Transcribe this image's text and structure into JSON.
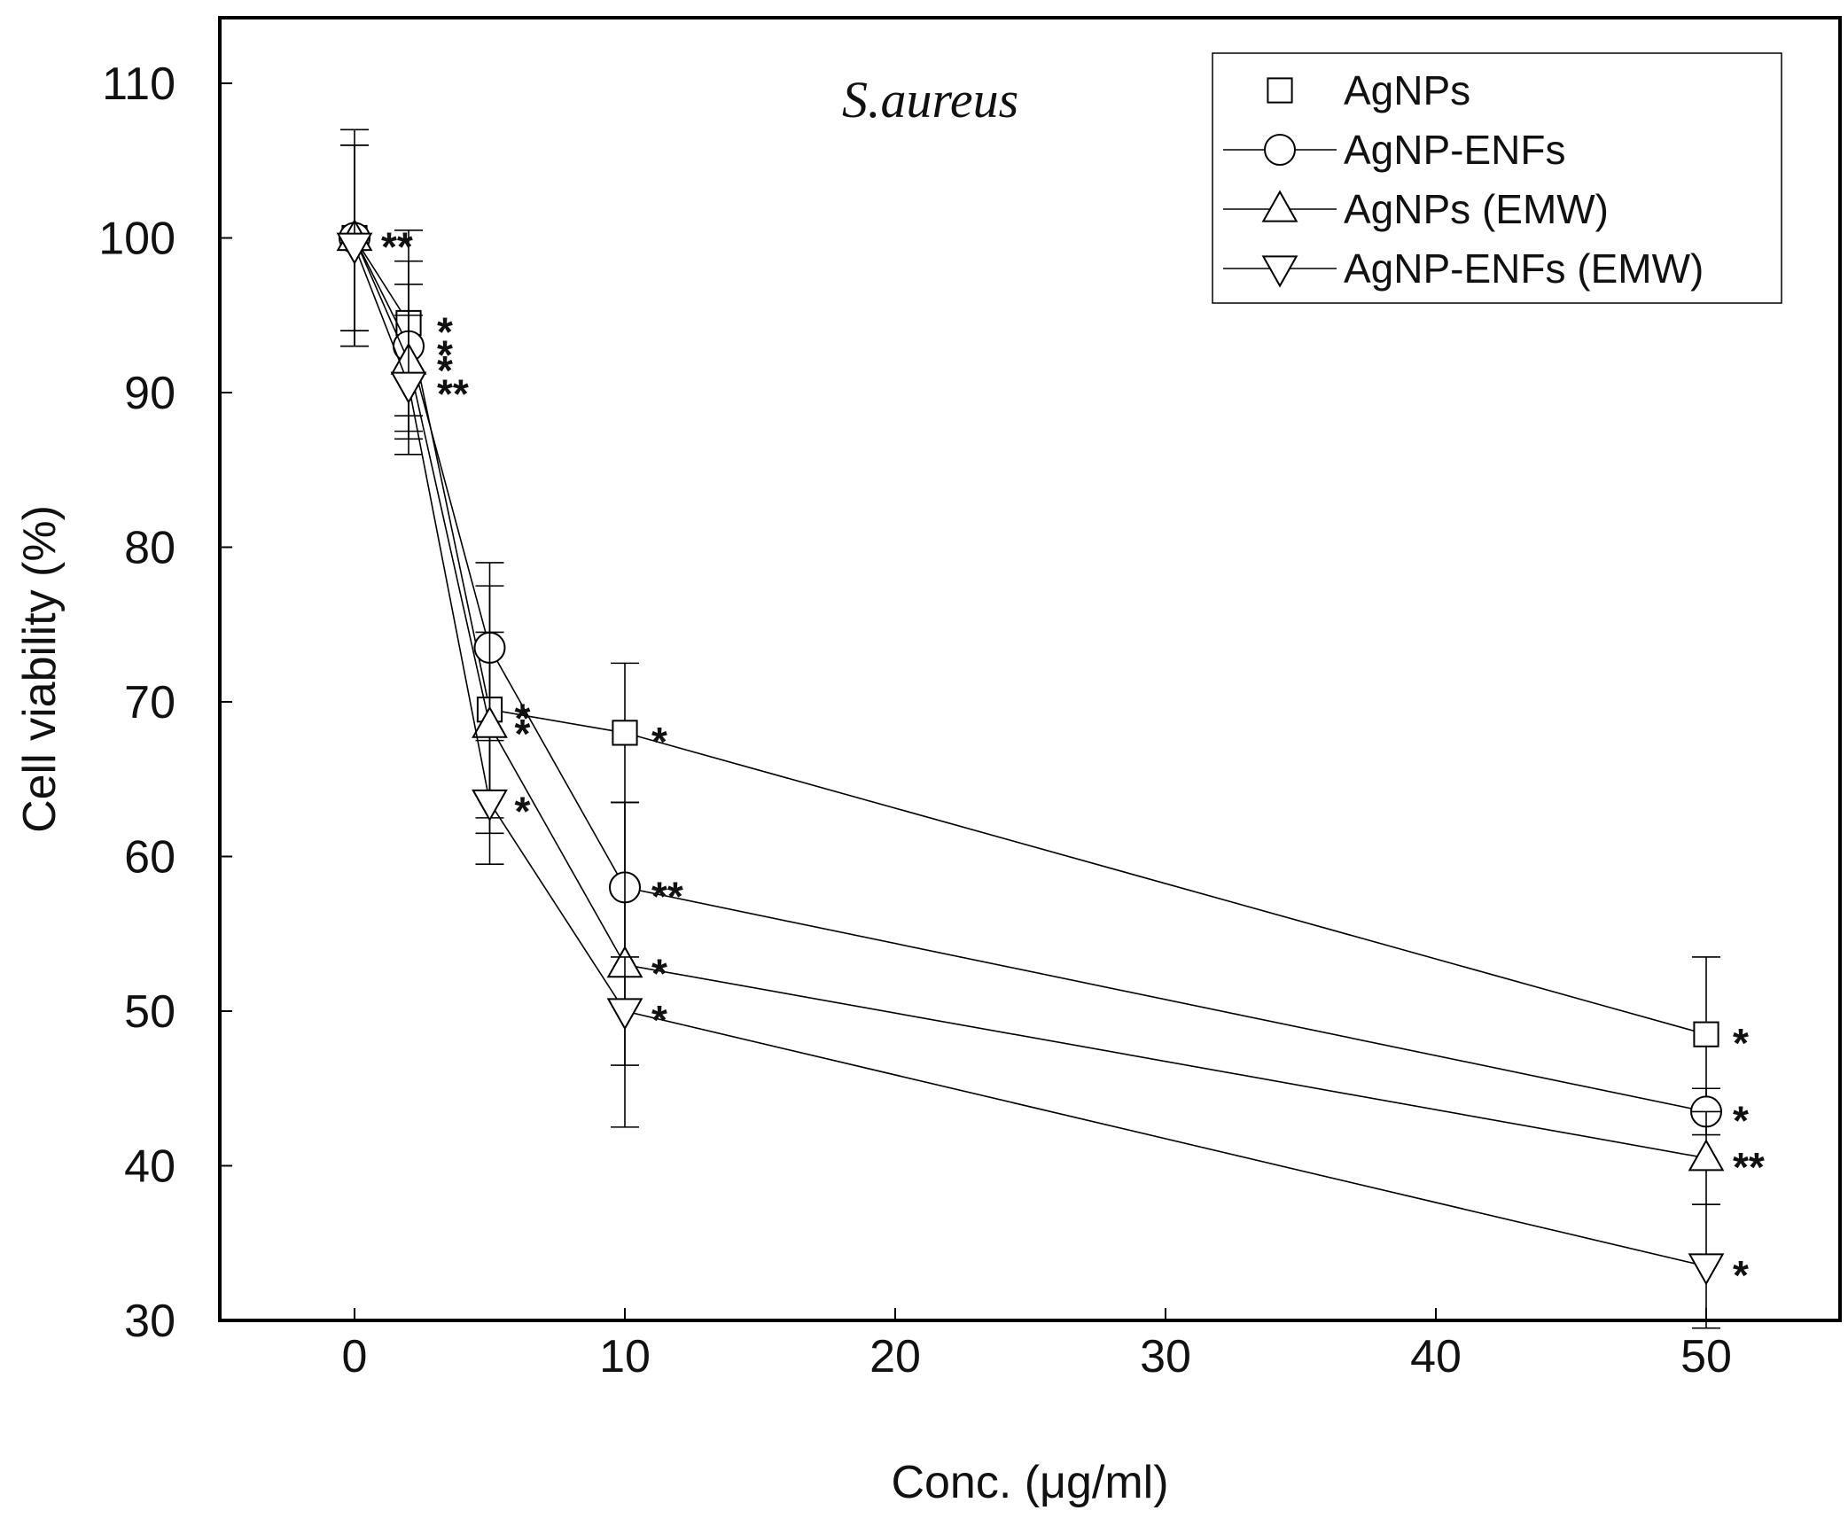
{
  "chart_data": {
    "type": "line",
    "title": "",
    "annotation": "S.aureus",
    "xlabel": "Conc. (μg/ml)",
    "ylabel": "Cell viability (%)",
    "xlim": [
      -5,
      55
    ],
    "ylim": [
      30,
      111
    ],
    "xticks": [
      0,
      10,
      20,
      30,
      40,
      50
    ],
    "yticks": [
      30,
      40,
      50,
      60,
      70,
      80,
      90,
      100,
      110
    ],
    "x": [
      0,
      2,
      5,
      10,
      50
    ],
    "legend_position": "top-right",
    "series": [
      {
        "name": "AgNPs",
        "marker": "square",
        "values": [
          100,
          94.5,
          69.5,
          68,
          48.5
        ],
        "error": [
          7,
          6,
          8,
          4.5,
          5
        ],
        "stars": [
          "**",
          "*",
          "*",
          "*",
          "*"
        ]
      },
      {
        "name": "AgNP-ENFs",
        "marker": "circle",
        "values": [
          100,
          93,
          73.5,
          58,
          43.5
        ],
        "error": [
          6,
          5.5,
          5.5,
          5.5,
          1.5
        ],
        "stars": [
          "",
          "*",
          "",
          "**",
          "*"
        ]
      },
      {
        "name": "AgNPs (EMW)",
        "marker": "triangle-up",
        "values": [
          100,
          92,
          68.5,
          53,
          40.5
        ],
        "error": [
          6,
          5,
          6,
          10.5,
          3
        ],
        "stars": [
          "",
          "*",
          "*",
          "*",
          "**"
        ]
      },
      {
        "name": "AgNP-ENFs (EMW)",
        "marker": "triangle-down",
        "values": [
          99.5,
          90.5,
          63.5,
          50,
          33.5
        ],
        "error": [
          6.5,
          4.5,
          4,
          3.5,
          4
        ],
        "stars": [
          "",
          "**",
          "*",
          "*",
          "*"
        ]
      }
    ]
  }
}
